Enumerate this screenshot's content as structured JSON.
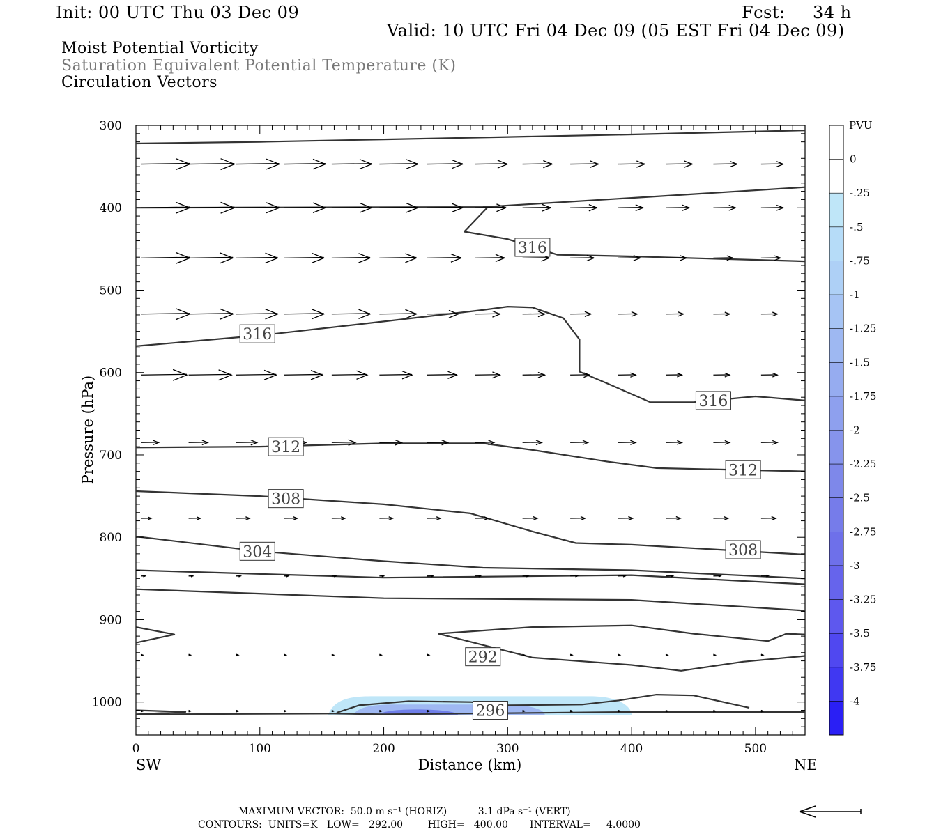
{
  "header": {
    "init": "Init: 00 UTC Thu 03 Dec 09",
    "fcst_label": "Fcst:",
    "fcst_value": "34 h",
    "valid": "Valid: 10 UTC Fri 04 Dec 09 (05 EST Fri 04 Dec 09)"
  },
  "titles": {
    "line1": "Moist Potential Vorticity",
    "line2": "Saturation Equivalent Potential Temperature (K)",
    "line3": "Circulation Vectors"
  },
  "footer": {
    "max_vector": "MAXIMUM VECTOR:  50.0 m s⁻¹ (HORIZ)          3.1 dPa s⁻¹ (VERT)",
    "contours": "CONTOURS:  UNITS=K   LOW=   292.00        HIGH=   400.00       INTERVAL=     4.0000"
  },
  "colors": {
    "contour": "#333333",
    "vector": "#000000",
    "pv_light": "#bfe6f8",
    "pv_mid": "#9fb8f2",
    "pv_dark": "#6f7ee8"
  },
  "chart_data": {
    "type": "cross-section",
    "xlabel": "Distance (km)",
    "ylabel": "Pressure (hPa)",
    "xlim": [
      0,
      540
    ],
    "ylim": [
      1040,
      300
    ],
    "x_ticks": [
      0,
      100,
      200,
      300,
      400,
      500
    ],
    "y_ticks": [
      300,
      400,
      500,
      600,
      700,
      800,
      900,
      1000
    ],
    "left_end_label": "SW",
    "right_end_label": "NE",
    "colorbar": {
      "title": "PVU",
      "levels": [
        "0",
        "-.25",
        "-.5",
        "-.75",
        "-1",
        "-1.25",
        "-1.5",
        "-1.75",
        "-2",
        "-2.25",
        "-2.5",
        "-2.75",
        "-3",
        "-3.25",
        "-3.5",
        "-3.75",
        "-4"
      ],
      "colors": [
        "#ffffff",
        "#ffffff",
        "#bfe6f8",
        "#b6dcf8",
        "#aed0f6",
        "#a6c4f4",
        "#9eb8f2",
        "#96acf0",
        "#8ea0ee",
        "#8694ec",
        "#7e88ea",
        "#767cea",
        "#6e70ea",
        "#6664ec",
        "#5e58ee",
        "#5048f0",
        "#4038f2",
        "#2a1ff5"
      ]
    },
    "contour_lines": [
      {
        "label": "",
        "points": [
          [
            0,
            322
          ],
          [
            100,
            320
          ],
          [
            200,
            317
          ],
          [
            300,
            314
          ],
          [
            400,
            311
          ],
          [
            540,
            306
          ]
        ]
      },
      {
        "label": "316",
        "label_at": [
          320,
          448
        ],
        "points": [
          [
            0,
            400
          ],
          [
            280,
            399
          ],
          [
            400,
            388
          ],
          [
            540,
            375
          ],
          null,
          [
            284,
            399
          ],
          [
            265,
            429
          ],
          [
            300,
            438
          ],
          [
            340,
            457
          ],
          [
            400,
            459
          ],
          [
            540,
            465
          ]
        ]
      },
      {
        "label": "316",
        "label_at": [
          98,
          553
        ],
        "points": [
          [
            0,
            568
          ],
          [
            100,
            555
          ],
          [
            200,
            538
          ],
          [
            280,
            524
          ],
          [
            300,
            520
          ],
          [
            320,
            521
          ],
          [
            345,
            534
          ],
          [
            358,
            560
          ],
          [
            358,
            599
          ],
          [
            380,
            613
          ],
          [
            415,
            636
          ],
          [
            450,
            636
          ],
          [
            500,
            629
          ],
          [
            540,
            634
          ]
        ]
      },
      {
        "label": "316",
        "label_at": [
          466,
          634
        ],
        "points": []
      },
      {
        "label": "312",
        "label_at": [
          121,
          690
        ],
        "points": [
          [
            0,
            691
          ],
          [
            100,
            690
          ],
          [
            200,
            686
          ],
          [
            280,
            686
          ],
          [
            320,
            694
          ],
          [
            380,
            708
          ],
          [
            420,
            716
          ],
          [
            540,
            720
          ]
        ]
      },
      {
        "label": "312",
        "label_at": [
          490,
          718
        ],
        "points": []
      },
      {
        "label": "308",
        "label_at": [
          121,
          753
        ],
        "points": [
          [
            0,
            744
          ],
          [
            100,
            750
          ],
          [
            200,
            760
          ],
          [
            270,
            771
          ],
          [
            320,
            793
          ],
          [
            355,
            807
          ],
          [
            400,
            809
          ],
          [
            540,
            821
          ]
        ]
      },
      {
        "label": "308",
        "label_at": [
          490,
          815
        ],
        "points": []
      },
      {
        "label": "304",
        "label_at": [
          98,
          817
        ],
        "points": [
          [
            0,
            799
          ],
          [
            100,
            817
          ],
          [
            200,
            829
          ],
          [
            280,
            837
          ],
          [
            400,
            840
          ],
          [
            540,
            850
          ]
        ]
      },
      {
        "label": "",
        "points": [
          [
            0,
            840
          ],
          [
            200,
            849
          ],
          [
            400,
            846
          ],
          [
            540,
            857
          ]
        ]
      },
      {
        "label": "",
        "points": [
          [
            0,
            863
          ],
          [
            200,
            874
          ],
          [
            400,
            876
          ],
          [
            540,
            889
          ]
        ]
      },
      {
        "label": "",
        "points": [
          [
            0,
            909
          ],
          [
            31,
            918
          ],
          [
            0,
            928
          ]
        ]
      },
      {
        "label": "292",
        "label_at": [
          280,
          945
        ],
        "points": [
          [
            244,
            917
          ],
          [
            320,
            909
          ],
          [
            400,
            907
          ],
          [
            450,
            917
          ],
          [
            510,
            926
          ],
          [
            525,
            917
          ],
          [
            540,
            918
          ]
        ]
      },
      {
        "label": "",
        "points": [
          [
            244,
            917
          ],
          [
            320,
            946
          ],
          [
            400,
            955
          ],
          [
            440,
            962
          ],
          [
            490,
            951
          ],
          [
            540,
            944
          ]
        ]
      },
      {
        "label": "296",
        "label_at": [
          286,
          1010
        ],
        "points": [
          [
            0,
            1010
          ],
          [
            40,
            1012
          ],
          [
            0,
            1015
          ],
          [
            160,
            1014
          ],
          [
            200,
            1015
          ],
          [
            400,
            1012
          ],
          [
            540,
            1012
          ],
          null,
          [
            162,
            1013
          ],
          [
            180,
            1004
          ],
          [
            220,
            999
          ],
          [
            270,
            1000
          ],
          [
            300,
            1004
          ],
          [
            360,
            1003
          ],
          [
            390,
            998
          ],
          [
            420,
            991
          ],
          [
            450,
            992
          ],
          [
            480,
            1002
          ],
          [
            495,
            1007
          ]
        ]
      }
    ],
    "pv_region": {
      "min_pvu": "-.25",
      "max_pvu": "-2.25",
      "x_range_km": [
        155,
        400
      ],
      "pressure_range_hPa": [
        993,
        1016
      ]
    },
    "vectors": [
      {
        "p": 347,
        "u": [
          33,
          31,
          29,
          28,
          27,
          26,
          24,
          22,
          20,
          19,
          18,
          18,
          16,
          15
        ]
      },
      {
        "p": 400,
        "u": [
          33,
          31,
          29,
          28,
          27,
          26,
          24,
          21,
          19,
          18,
          17,
          16,
          15,
          15
        ]
      },
      {
        "p": 461,
        "u": [
          33,
          30,
          28,
          27,
          26,
          25,
          23,
          20,
          18,
          16,
          15,
          14,
          13,
          13
        ]
      },
      {
        "p": 529,
        "u": [
          33,
          30,
          28,
          27,
          26,
          25,
          21,
          17,
          15,
          14,
          13,
          12,
          11,
          11
        ]
      },
      {
        "p": 603,
        "u": [
          31,
          29,
          27,
          26,
          24,
          22,
          20,
          17,
          15,
          13,
          12,
          11,
          11,
          11
        ]
      },
      {
        "p": 685,
        "u": [
          12,
          13,
          14,
          15,
          16,
          15,
          14,
          13,
          13,
          12,
          12,
          11,
          11,
          11
        ]
      },
      {
        "p": 777,
        "u": [
          7,
          8,
          9,
          9,
          9,
          9,
          9,
          9,
          10,
          10,
          10,
          10,
          10,
          10
        ]
      },
      {
        "p": 847,
        "u": [
          3,
          3,
          3,
          3,
          3,
          3,
          4,
          4,
          4,
          5,
          5,
          5,
          5,
          5
        ]
      },
      {
        "p": 943,
        "u": [
          1,
          1,
          1,
          1,
          1,
          1,
          1,
          1,
          1,
          1,
          1,
          1,
          1,
          1
        ]
      },
      {
        "p": 1011,
        "u": [
          1,
          1,
          1,
          1,
          1,
          1,
          1,
          1,
          1,
          1,
          1,
          1,
          1,
          1
        ]
      }
    ],
    "reference_vector": {
      "u": 50,
      "w": 3.1
    }
  }
}
